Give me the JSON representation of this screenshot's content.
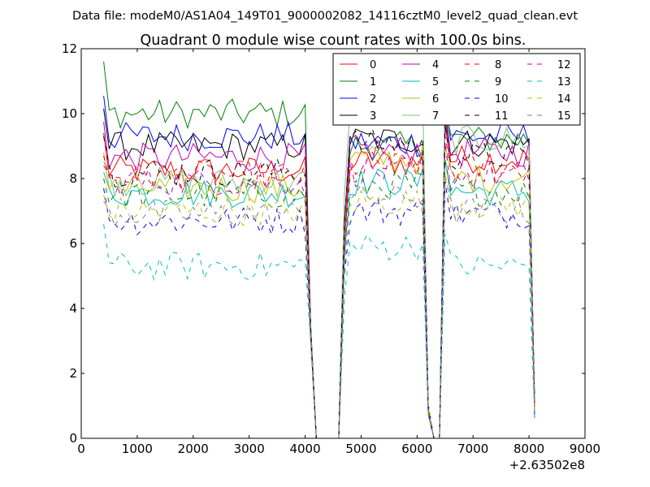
{
  "suptitle": "Data file: modeM0/AS1A04_149T01_9000002082_14116cztM0_level2_quad_clean.evt",
  "chart_data": {
    "type": "line",
    "title": "Quadrant 0 module wise count rates with 100.0s bins.",
    "xlabel": "",
    "ylabel": "",
    "x_offset_label": "+2.63502e8",
    "xlim": [
      0,
      9000
    ],
    "ylim": [
      0,
      12
    ],
    "x_ticks": [
      "0",
      "1000",
      "2000",
      "3000",
      "4000",
      "5000",
      "6000",
      "7000",
      "8000",
      "9000"
    ],
    "y_ticks": [
      "0",
      "2",
      "4",
      "6",
      "8",
      "10",
      "12"
    ],
    "grid": false,
    "legend_position": "top-right",
    "legend_columns": 4,
    "segments": [
      {
        "start": 400,
        "end": 4000,
        "step": 100
      },
      {
        "start": 4700,
        "end": 6100,
        "step": 100
      },
      {
        "start": 6500,
        "end": 8000,
        "step": 100
      }
    ],
    "dropout_ranges": [
      [
        4200,
        4600
      ],
      [
        6300,
        6400
      ]
    ],
    "ramp_tails": {
      "4100": 3.2,
      "4200": 0,
      "4600": 0,
      "6200": 0.9,
      "6300": 0,
      "6400": 0,
      "8100": 0.6
    },
    "series": [
      {
        "name": "0",
        "color": "#ff0000",
        "dash": "solid",
        "levels": [
          8.25,
          8.5,
          8.6
        ],
        "first": 9.4
      },
      {
        "name": "1",
        "color": "#008000",
        "dash": "solid",
        "levels": [
          10.0,
          9.0,
          9.2
        ],
        "first": 11.6
      },
      {
        "name": "2",
        "color": "#0000ff",
        "dash": "solid",
        "levels": [
          9.3,
          9.1,
          9.3
        ],
        "first": 10.55
      },
      {
        "name": "3",
        "color": "#000000",
        "dash": "solid",
        "levels": [
          9.0,
          9.2,
          9.1
        ],
        "first": 10.15
      },
      {
        "name": "4",
        "color": "#bf00bf",
        "dash": "solid",
        "levels": [
          8.65,
          8.9,
          8.8
        ],
        "first": 9.75
      },
      {
        "name": "5",
        "color": "#00bfbf",
        "dash": "solid",
        "levels": [
          7.55,
          7.9,
          7.6
        ],
        "first": 8.2
      },
      {
        "name": "6",
        "color": "#bfbf00",
        "dash": "solid",
        "levels": [
          7.7,
          8.6,
          8.0
        ],
        "first": 8.8
      },
      {
        "name": "7",
        "color": "#7fbf7f",
        "dash": "solid",
        "levels": [
          7.9,
          10.4,
          9.2
        ],
        "first": 8.5
      },
      {
        "name": "8",
        "color": "#ff0000",
        "dash": "dashed",
        "levels": [
          8.1,
          8.4,
          8.3
        ],
        "first": 8.7
      },
      {
        "name": "9",
        "color": "#008000",
        "dash": "dashed",
        "levels": [
          7.5,
          7.8,
          7.6
        ],
        "first": 8.0
      },
      {
        "name": "10",
        "color": "#0000ff",
        "dash": "dashed",
        "levels": [
          6.7,
          7.0,
          6.9
        ],
        "first": 7.7
      },
      {
        "name": "11",
        "color": "#000000",
        "dash": "dashed",
        "levels": [
          8.2,
          9.1,
          8.7
        ],
        "first": 9.3
      },
      {
        "name": "12",
        "color": "#bf00bf",
        "dash": "dashed",
        "levels": [
          7.9,
          8.2,
          8.1
        ],
        "first": 8.4
      },
      {
        "name": "13",
        "color": "#00bfbf",
        "dash": "dashed",
        "levels": [
          5.3,
          5.9,
          5.3
        ],
        "first": 6.6
      },
      {
        "name": "14",
        "color": "#bfbf00",
        "dash": "dashed",
        "levels": [
          7.0,
          7.3,
          7.2
        ],
        "first": 7.5
      },
      {
        "name": "15",
        "color": "#7f7f7f",
        "dash": "dashed",
        "levels": [
          6.9,
          7.4,
          7.0
        ],
        "first": 7.3
      }
    ]
  }
}
